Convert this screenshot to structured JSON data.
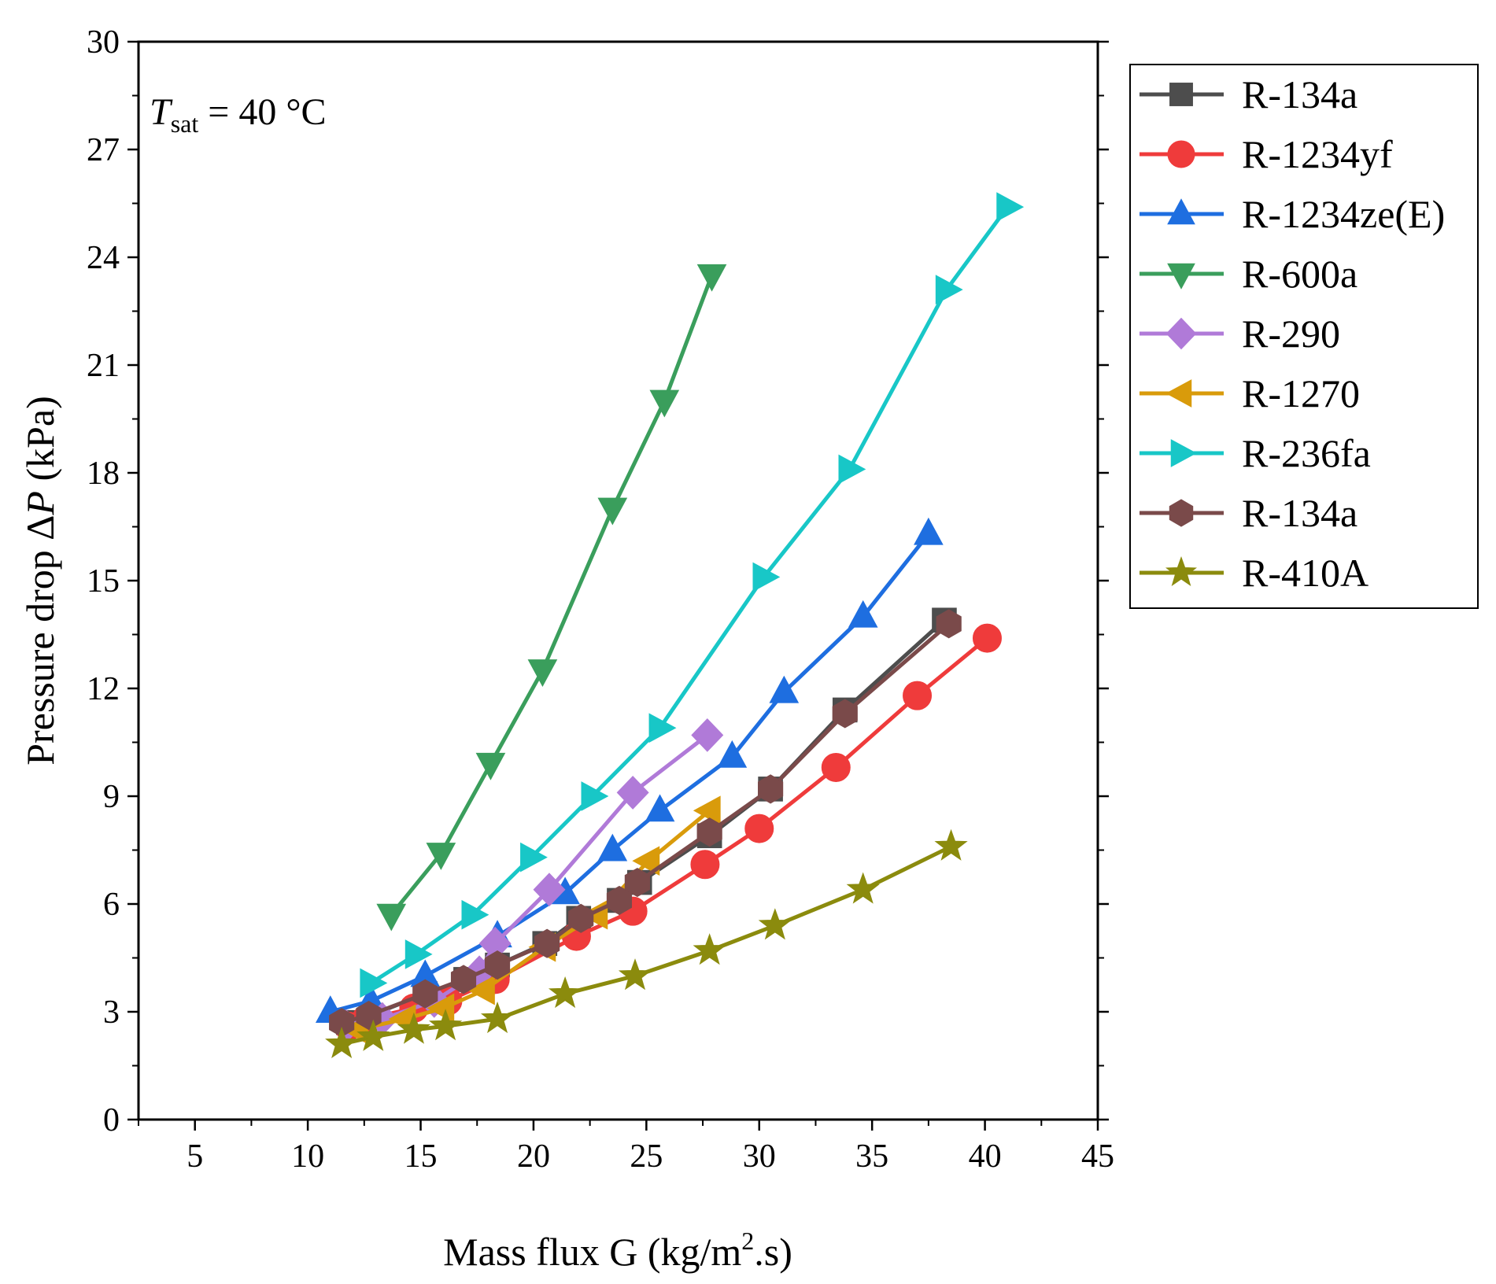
{
  "chart_data": {
    "type": "line",
    "title": "",
    "xlabel": "Mass flux G (kg/m².s)",
    "xlabel_parts": {
      "main": "Mass flux G (kg/m",
      "sup": "2",
      "tail": ".s)"
    },
    "ylabel": "Pressure drop ΔP (kPa)",
    "ylabel_parts": {
      "main": "Pressure drop Δ",
      "ital": "P",
      "tail": " (kPa)"
    },
    "xlim": [
      2.5,
      45
    ],
    "ylim": [
      0,
      30
    ],
    "xticks": [
      5,
      10,
      15,
      20,
      25,
      30,
      35,
      40,
      45
    ],
    "yticks": [
      0,
      3,
      6,
      9,
      12,
      15,
      18,
      21,
      24,
      27,
      30
    ],
    "grid": false,
    "legend_position": "outside-right",
    "annotation": {
      "T": "T",
      "sub": "sat",
      "rest": " = 40 °C"
    },
    "series": [
      {
        "name": "R-134a",
        "color": "#4d4d4d",
        "marker": "square",
        "x": [
          11.8,
          12.8,
          15.2,
          17.0,
          18.4,
          20.5,
          22.0,
          23.8,
          24.7,
          27.8,
          30.5,
          33.8,
          38.2
        ],
        "y": [
          2.7,
          2.9,
          3.5,
          3.9,
          4.3,
          4.9,
          5.6,
          6.1,
          6.6,
          7.9,
          9.2,
          11.4,
          13.9
        ]
      },
      {
        "name": "R-1234yf",
        "color": "#ef3b3b",
        "marker": "circle",
        "x": [
          11.8,
          12.6,
          14.7,
          16.2,
          18.3,
          21.9,
          24.4,
          27.6,
          30.0,
          33.4,
          37.0,
          40.1
        ],
        "y": [
          2.6,
          2.8,
          3.1,
          3.3,
          3.9,
          5.1,
          5.8,
          7.1,
          8.1,
          9.8,
          11.8,
          13.4
        ]
      },
      {
        "name": "R-1234ze(E)",
        "color": "#1e6ee0",
        "marker": "triangle-up",
        "x": [
          11.0,
          12.8,
          15.2,
          18.4,
          21.4,
          23.5,
          25.6,
          28.8,
          31.1,
          34.6,
          37.5
        ],
        "y": [
          3.0,
          3.3,
          4.0,
          5.1,
          6.3,
          7.5,
          8.6,
          10.1,
          11.9,
          14.0,
          16.3
        ]
      },
      {
        "name": "R-600a",
        "color": "#3a9e5c",
        "marker": "triangle-down",
        "x": [
          13.7,
          15.9,
          18.1,
          20.4,
          23.5,
          25.8,
          27.9
        ],
        "y": [
          5.7,
          7.4,
          9.9,
          12.5,
          17.0,
          20.0,
          23.5
        ]
      },
      {
        "name": "R-290",
        "color": "#b07ad8",
        "marker": "diamond",
        "x": [
          11.7,
          13.3,
          15.6,
          17.6,
          18.3,
          20.7,
          24.4,
          27.7
        ],
        "y": [
          2.6,
          2.8,
          3.3,
          4.1,
          4.9,
          6.4,
          9.1,
          10.7
        ]
      },
      {
        "name": "R-1270",
        "color": "#d99b0b",
        "marker": "triangle-left",
        "x": [
          12.2,
          14.3,
          16.0,
          17.8,
          20.5,
          22.8,
          25.1,
          27.8
        ],
        "y": [
          2.5,
          2.8,
          3.1,
          3.6,
          4.8,
          5.7,
          7.2,
          8.6
        ]
      },
      {
        "name": "R-236fa",
        "color": "#18c7c7",
        "marker": "triangle-right",
        "x": [
          12.8,
          14.8,
          17.3,
          19.9,
          22.6,
          25.6,
          30.2,
          34.0,
          38.3,
          41.0
        ],
        "y": [
          3.8,
          4.6,
          5.7,
          7.3,
          9.0,
          10.9,
          15.1,
          18.1,
          23.1,
          25.4
        ]
      },
      {
        "name": "R-134a",
        "color": "#7a4a4a",
        "marker": "hexagon",
        "x": [
          11.5,
          12.7,
          15.2,
          16.9,
          18.4,
          20.6,
          22.1,
          23.8,
          24.6,
          27.8,
          30.5,
          33.8,
          38.4
        ],
        "y": [
          2.7,
          2.9,
          3.5,
          3.9,
          4.3,
          4.9,
          5.6,
          6.1,
          6.6,
          8.0,
          9.2,
          11.3,
          13.8
        ]
      },
      {
        "name": "R-410A",
        "color": "#8b8b0d",
        "marker": "star",
        "x": [
          11.5,
          12.9,
          14.7,
          16.1,
          18.4,
          21.4,
          24.5,
          27.8,
          30.7,
          34.6,
          38.5
        ],
        "y": [
          2.1,
          2.3,
          2.5,
          2.6,
          2.8,
          3.5,
          4.0,
          4.7,
          5.4,
          6.4,
          7.6
        ]
      }
    ]
  }
}
